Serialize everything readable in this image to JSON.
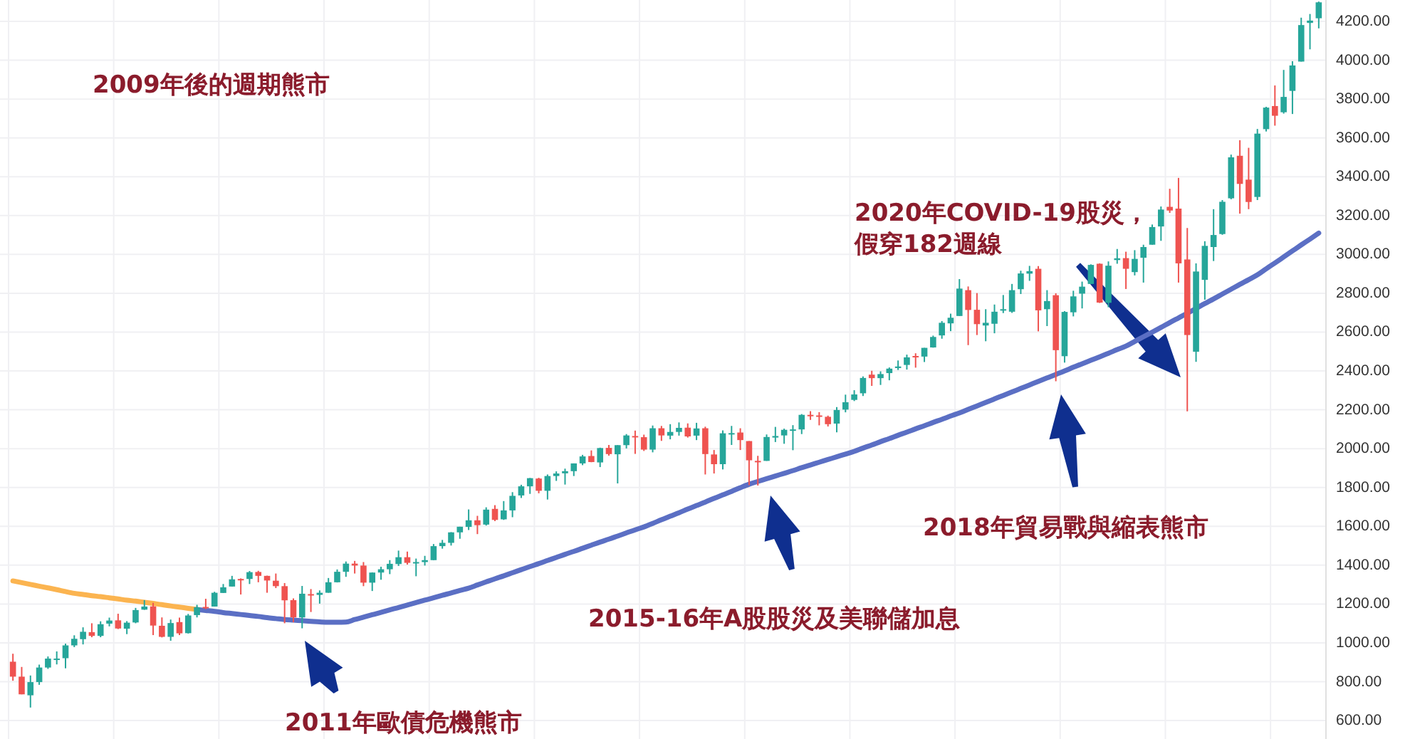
{
  "chart_data": {
    "type": "candlestick",
    "title": "2009年後的週期熊市",
    "annotations": [
      "2011年歐債危機熊市",
      "2015-16年A股股災及美聯儲加息",
      "2018年貿易戰與縮表熊市",
      "2020年COVID-19股災，",
      "假穿182週線"
    ],
    "categories": [
      null,
      null,
      null,
      null,
      null,
      null,
      null,
      null,
      null,
      null,
      null,
      null,
      null,
      null,
      null,
      null,
      null,
      null,
      null,
      null,
      null,
      null,
      null,
      null,
      null,
      null,
      null,
      null,
      null,
      null,
      null,
      null,
      null,
      null,
      null,
      null,
      null,
      null,
      null,
      null,
      null,
      null,
      null,
      null,
      null,
      null,
      null,
      null,
      null,
      null,
      null,
      null,
      null,
      null,
      null,
      null,
      null,
      null,
      null,
      null,
      null,
      null,
      null,
      null,
      null,
      null,
      null,
      null,
      null,
      null,
      null,
      null,
      null,
      null,
      null,
      null,
      null,
      null,
      null,
      null,
      null,
      null,
      null,
      null,
      null,
      null,
      null,
      null,
      null,
      null,
      null,
      null,
      null,
      null,
      null,
      null,
      null,
      null,
      null,
      null,
      null,
      null,
      null,
      null,
      null,
      null,
      null,
      null,
      null,
      null,
      null,
      null,
      null,
      null,
      null,
      null,
      null,
      null,
      null,
      null,
      null,
      null,
      null,
      null,
      null,
      null,
      null,
      null,
      null,
      null,
      null,
      null,
      null,
      null,
      null,
      null,
      null,
      null,
      null,
      null,
      null,
      null,
      null,
      null,
      null,
      null,
      null,
      null,
      null,
      null
    ],
    "ohlc": [
      [
        903,
        944,
        805,
        826
      ],
      [
        826,
        876,
        735,
        735
      ],
      [
        730,
        832,
        667,
        798
      ],
      [
        798,
        888,
        784,
        873
      ],
      [
        873,
        930,
        866,
        919
      ],
      [
        919,
        956,
        889,
        919
      ],
      [
        921,
        996,
        869,
        987
      ],
      [
        987,
        1039,
        978,
        1021
      ],
      [
        1019,
        1080,
        992,
        1057
      ],
      [
        1055,
        1101,
        1029,
        1036
      ],
      [
        1036,
        1111,
        1029,
        1096
      ],
      [
        1099,
        1130,
        1085,
        1115
      ],
      [
        1116,
        1150,
        1071,
        1074
      ],
      [
        1073,
        1112,
        1045,
        1104
      ],
      [
        1105,
        1180,
        1101,
        1169
      ],
      [
        1171,
        1220,
        1170,
        1187
      ],
      [
        1188,
        1206,
        1040,
        1089
      ],
      [
        1088,
        1131,
        1028,
        1031
      ],
      [
        1031,
        1120,
        1011,
        1102
      ],
      [
        1107,
        1130,
        1040,
        1049
      ],
      [
        1050,
        1149,
        1048,
        1141
      ],
      [
        1143,
        1196,
        1131,
        1183
      ],
      [
        1185,
        1227,
        1173,
        1181
      ],
      [
        1187,
        1263,
        1187,
        1258
      ],
      [
        1257,
        1303,
        1257,
        1286
      ],
      [
        1290,
        1345,
        1290,
        1327
      ],
      [
        1329,
        1332,
        1249,
        1326
      ],
      [
        1329,
        1370,
        1303,
        1364
      ],
      [
        1365,
        1371,
        1312,
        1345
      ],
      [
        1345,
        1346,
        1258,
        1321
      ],
      [
        1320,
        1357,
        1282,
        1292
      ],
      [
        1292,
        1308,
        1101,
        1219
      ],
      [
        1220,
        1229,
        1106,
        1131
      ],
      [
        1131,
        1293,
        1075,
        1253
      ],
      [
        1251,
        1277,
        1159,
        1247
      ],
      [
        1247,
        1270,
        1202,
        1258
      ],
      [
        1258,
        1334,
        1258,
        1312
      ],
      [
        1312,
        1378,
        1311,
        1366
      ],
      [
        1366,
        1419,
        1340,
        1408
      ],
      [
        1408,
        1422,
        1357,
        1398
      ],
      [
        1398,
        1416,
        1292,
        1310
      ],
      [
        1310,
        1363,
        1267,
        1362
      ],
      [
        1362,
        1392,
        1325,
        1379
      ],
      [
        1379,
        1426,
        1354,
        1407
      ],
      [
        1406,
        1475,
        1396,
        1441
      ],
      [
        1441,
        1470,
        1403,
        1412
      ],
      [
        1412,
        1434,
        1343,
        1416
      ],
      [
        1416,
        1448,
        1398,
        1426
      ],
      [
        1426,
        1509,
        1426,
        1498
      ],
      [
        1498,
        1530,
        1485,
        1515
      ],
      [
        1515,
        1570,
        1501,
        1569
      ],
      [
        1569,
        1598,
        1536,
        1598
      ],
      [
        1597,
        1687,
        1581,
        1631
      ],
      [
        1631,
        1654,
        1560,
        1606
      ],
      [
        1609,
        1698,
        1604,
        1686
      ],
      [
        1690,
        1709,
        1627,
        1633
      ],
      [
        1636,
        1730,
        1633,
        1682
      ],
      [
        1682,
        1776,
        1647,
        1757
      ],
      [
        1759,
        1814,
        1746,
        1806
      ],
      [
        1806,
        1849,
        1767,
        1848
      ],
      [
        1846,
        1850,
        1770,
        1783
      ],
      [
        1783,
        1867,
        1738,
        1859
      ],
      [
        1859,
        1883,
        1834,
        1872
      ],
      [
        1873,
        1897,
        1815,
        1884
      ],
      [
        1884,
        1924,
        1859,
        1924
      ],
      [
        1924,
        1968,
        1915,
        1960
      ],
      [
        1962,
        1991,
        1930,
        1931
      ],
      [
        1929,
        2005,
        1905,
        2003
      ],
      [
        2004,
        2019,
        1964,
        1972
      ],
      [
        1971,
        2018,
        1821,
        2018
      ],
      [
        2018,
        2075,
        2001,
        2068
      ],
      [
        2065,
        2093,
        1973,
        2059
      ],
      [
        2059,
        2072,
        1988,
        1995
      ],
      [
        1995,
        2119,
        1981,
        2105
      ],
      [
        2105,
        2117,
        2040,
        2068
      ],
      [
        2067,
        2126,
        2048,
        2086
      ],
      [
        2086,
        2135,
        2067,
        2107
      ],
      [
        2108,
        2130,
        2057,
        2063
      ],
      [
        2067,
        2133,
        2044,
        2104
      ],
      [
        2105,
        2113,
        1867,
        1972
      ],
      [
        1970,
        1993,
        1872,
        1920
      ],
      [
        1920,
        2094,
        1893,
        2079
      ],
      [
        2080,
        2117,
        2019,
        2080
      ],
      [
        2083,
        2105,
        1993,
        2044
      ],
      [
        2039,
        2039,
        1812,
        1940
      ],
      [
        1937,
        1963,
        1810,
        1932
      ],
      [
        1937,
        2073,
        1937,
        2060
      ],
      [
        2057,
        2112,
        2034,
        2065
      ],
      [
        2068,
        2103,
        2025,
        2097
      ],
      [
        2094,
        2121,
        1992,
        2099
      ],
      [
        2099,
        2178,
        2075,
        2174
      ],
      [
        2174,
        2193,
        2148,
        2171
      ],
      [
        2171,
        2188,
        2120,
        2168
      ],
      [
        2164,
        2170,
        2114,
        2126
      ],
      [
        2129,
        2214,
        2084,
        2199
      ],
      [
        2201,
        2278,
        2187,
        2239
      ],
      [
        2251,
        2301,
        2245,
        2279
      ],
      [
        2285,
        2372,
        2271,
        2364
      ],
      [
        2381,
        2401,
        2323,
        2363
      ],
      [
        2363,
        2398,
        2328,
        2384
      ],
      [
        2389,
        2418,
        2352,
        2412
      ],
      [
        2415,
        2454,
        2405,
        2423
      ],
      [
        2431,
        2484,
        2407,
        2470
      ],
      [
        2477,
        2491,
        2417,
        2472
      ],
      [
        2474,
        2519,
        2446,
        2519
      ],
      [
        2521,
        2582,
        2520,
        2575
      ],
      [
        2583,
        2657,
        2566,
        2648
      ],
      [
        2645,
        2695,
        2605,
        2674
      ],
      [
        2683,
        2873,
        2683,
        2824
      ],
      [
        2816,
        2835,
        2533,
        2714
      ],
      [
        2715,
        2801,
        2585,
        2641
      ],
      [
        2634,
        2718,
        2553,
        2648
      ],
      [
        2643,
        2742,
        2594,
        2705
      ],
      [
        2718,
        2791,
        2698,
        2718
      ],
      [
        2705,
        2848,
        2699,
        2816
      ],
      [
        2821,
        2916,
        2796,
        2902
      ],
      [
        2901,
        2941,
        2864,
        2914
      ],
      [
        2926,
        2940,
        2604,
        2712
      ],
      [
        2718,
        2816,
        2631,
        2760
      ],
      [
        2790,
        2800,
        2347,
        2507
      ],
      [
        2476,
        2708,
        2443,
        2704
      ],
      [
        2702,
        2813,
        2681,
        2784
      ],
      [
        2798,
        2860,
        2722,
        2834
      ],
      [
        2848,
        2949,
        2848,
        2946
      ],
      [
        2952,
        2954,
        2750,
        2752
      ],
      [
        2751,
        2964,
        2728,
        2942
      ],
      [
        2971,
        3028,
        2952,
        2980
      ],
      [
        2981,
        3014,
        2822,
        2926
      ],
      [
        2909,
        3022,
        2892,
        2977
      ],
      [
        2983,
        3050,
        2855,
        3038
      ],
      [
        3050,
        3154,
        3050,
        3141
      ],
      [
        3144,
        3247,
        3070,
        3231
      ],
      [
        3245,
        3338,
        3214,
        3226
      ],
      [
        3236,
        3394,
        2855,
        2954
      ],
      [
        2974,
        3136,
        2192,
        2585
      ],
      [
        2499,
        2954,
        2447,
        2912
      ],
      [
        2869,
        3068,
        2767,
        3044
      ],
      [
        3038,
        3233,
        2966,
        3100
      ],
      [
        3105,
        3280,
        3101,
        3271
      ],
      [
        3289,
        3514,
        3284,
        3500
      ],
      [
        3508,
        3588,
        3210,
        3363
      ],
      [
        3385,
        3549,
        3233,
        3270
      ],
      [
        3296,
        3646,
        3280,
        3622
      ],
      [
        3645,
        3760,
        3633,
        3756
      ],
      [
        3764,
        3870,
        3663,
        3714
      ],
      [
        3732,
        3950,
        3725,
        3811
      ],
      [
        3842,
        3995,
        3723,
        3973
      ],
      [
        3993,
        4219,
        3993,
        4181
      ],
      [
        4192,
        4238,
        4056,
        4204
      ],
      [
        4216,
        4302,
        4164,
        4298
      ]
    ],
    "colors": [
      "#ef5350",
      "#ef5350",
      "#26a69a",
      "#26a69a",
      "#26a69a",
      "#26a69a",
      "#26a69a",
      "#26a69a",
      "#26a69a",
      "#ef5350",
      "#26a69a",
      "#26a69a",
      "#ef5350",
      "#26a69a",
      "#26a69a",
      "#26a69a",
      "#ef5350",
      "#ef5350",
      "#26a69a",
      "#ef5350",
      "#26a69a",
      "#26a69a",
      "#ef5350",
      "#26a69a",
      "#26a69a",
      "#26a69a",
      "#ef5350",
      "#26a69a",
      "#ef5350",
      "#ef5350",
      "#ef5350",
      "#ef5350",
      "#ef5350",
      "#26a69a",
      "#ef5350",
      "#26a69a",
      "#26a69a",
      "#26a69a",
      "#26a69a",
      "#ef5350",
      "#ef5350",
      "#26a69a",
      "#26a69a",
      "#26a69a",
      "#26a69a",
      "#ef5350",
      "#26a69a",
      "#26a69a",
      "#26a69a",
      "#26a69a",
      "#26a69a",
      "#26a69a",
      "#26a69a",
      "#ef5350",
      "#26a69a",
      "#ef5350",
      "#26a69a",
      "#26a69a",
      "#26a69a",
      "#26a69a",
      "#ef5350",
      "#26a69a",
      "#26a69a",
      "#26a69a",
      "#26a69a",
      "#26a69a",
      "#ef5350",
      "#26a69a",
      "#ef5350",
      "#26a69a",
      "#26a69a",
      "#ef5350",
      "#ef5350",
      "#26a69a",
      "#ef5350",
      "#26a69a",
      "#26a69a",
      "#ef5350",
      "#26a69a",
      "#ef5350",
      "#ef5350",
      "#26a69a",
      "#26a69a",
      "#ef5350",
      "#ef5350",
      "#ef5350",
      "#26a69a",
      "#26a69a",
      "#26a69a",
      "#26a69a",
      "#26a69a",
      "#ef5350",
      "#ef5350",
      "#ef5350",
      "#26a69a",
      "#26a69a",
      "#26a69a",
      "#26a69a",
      "#ef5350",
      "#26a69a",
      "#26a69a",
      "#26a69a",
      "#26a69a",
      "#ef5350",
      "#26a69a",
      "#26a69a",
      "#26a69a",
      "#26a69a",
      "#26a69a",
      "#ef5350",
      "#ef5350",
      "#26a69a",
      "#26a69a",
      "#26a69a",
      "#26a69a",
      "#26a69a",
      "#26a69a",
      "#ef5350",
      "#26a69a",
      "#ef5350",
      "#26a69a",
      "#26a69a",
      "#26a69a",
      "#26a69a",
      "#ef5350",
      "#26a69a",
      "#26a69a",
      "#ef5350",
      "#26a69a",
      "#26a69a",
      "#26a69a",
      "#26a69a",
      "#ef5350",
      "#ef5350",
      "#ef5350",
      "#26a69a",
      "#26a69a",
      "#26a69a",
      "#26a69a",
      "#26a69a",
      "#ef5350",
      "#ef5350",
      "#26a69a",
      "#26a69a",
      "#ef5350",
      "#26a69a",
      "#26a69a",
      "#26a69a",
      "#26a69a",
      "#26a69a"
    ],
    "series": [
      {
        "type": "line",
        "color": "#fbb450",
        "values": [
          1319,
          1310,
          1301,
          1292,
          1283,
          1274,
          1264,
          1255,
          1249,
          1243,
          1238,
          1232,
          1226,
          1220,
          1215,
          1209,
          1203,
          1197,
          1190,
          1184,
          1178,
          1172,
          null,
          null,
          null,
          null,
          null,
          null,
          null,
          null,
          null,
          null,
          null,
          null,
          null,
          null,
          null,
          null,
          null,
          null,
          null,
          null,
          null,
          null,
          null,
          null,
          null,
          null,
          null,
          null,
          null,
          null,
          null,
          null,
          null,
          null,
          null,
          null,
          null,
          null,
          null,
          null,
          null,
          null,
          null,
          null,
          null,
          null,
          null,
          null,
          null,
          null,
          null,
          null,
          null,
          null,
          null,
          null,
          null,
          null,
          null,
          null,
          null,
          null,
          null,
          null,
          null,
          null,
          null,
          null,
          null,
          null,
          null,
          null,
          null,
          null,
          null,
          null,
          null,
          null,
          null,
          null,
          null,
          null,
          null,
          null,
          null,
          null,
          null,
          null,
          null,
          null,
          null,
          null,
          null,
          null,
          null,
          null,
          null,
          null,
          null,
          null,
          null,
          null,
          null,
          null,
          null,
          null,
          null,
          null,
          null,
          null,
          null,
          null,
          null,
          null,
          null,
          null,
          null,
          null,
          null,
          null,
          null,
          null,
          null,
          null,
          null,
          null,
          null,
          null
        ]
      },
      {
        "type": "line",
        "color": "#5b6fc4",
        "values": [
          null,
          null,
          null,
          null,
          null,
          null,
          null,
          null,
          null,
          null,
          null,
          null,
          null,
          null,
          null,
          null,
          null,
          null,
          null,
          null,
          null,
          1172,
          1167,
          1162,
          1156,
          1151,
          1146,
          1141,
          1136,
          1130,
          1125,
          1120,
          1117,
          1114,
          1111,
          1108,
          1106,
          1106,
          1107,
          1120,
          1132,
          1145,
          1157,
          1170,
          1182,
          1195,
          1207,
          1220,
          1232,
          1245,
          1257,
          1270,
          1282,
          1298,
          1314,
          1330,
          1345,
          1361,
          1377,
          1393,
          1408,
          1424,
          1440,
          1456,
          1471,
          1487,
          1503,
          1519,
          1534,
          1550,
          1566,
          1582,
          1597,
          1615,
          1634,
          1652,
          1670,
          1689,
          1707,
          1725,
          1744,
          1762,
          1780,
          1799,
          1817,
          1831,
          1845,
          1859,
          1873,
          1887,
          1902,
          1916,
          1930,
          1944,
          1958,
          1972,
          1986,
          2003,
          2019,
          2036,
          2052,
          2069,
          2085,
          2102,
          2118,
          2135,
          2151,
          2168,
          2184,
          2202,
          2220,
          2238,
          2256,
          2274,
          2292,
          2310,
          2328,
          2346,
          2364,
          2382,
          2400,
          2419,
          2437,
          2455,
          2473,
          2491,
          2510,
          2528,
          2552,
          2576,
          2600,
          2624,
          2649,
          2673,
          2697,
          2722,
          2747,
          2771,
          2796,
          2821,
          2846,
          2870,
          2895,
          2926,
          2956,
          2987,
          3018,
          3049,
          3079,
          3110
        ]
      }
    ],
    "ylim": [
      505,
      4310
    ],
    "yticks": [
      {
        "value": 600,
        "label": "600.00"
      },
      {
        "value": 800,
        "label": "800.00"
      },
      {
        "value": 1000,
        "label": "1000.00"
      },
      {
        "value": 1200,
        "label": "1200.00"
      },
      {
        "value": 1400,
        "label": "1400.00"
      },
      {
        "value": 1600,
        "label": "1600.00"
      },
      {
        "value": 1800,
        "label": "1800.00"
      },
      {
        "value": 2000,
        "label": "2000.00"
      },
      {
        "value": 2200,
        "label": "2200.00"
      },
      {
        "value": 2400,
        "label": "2400.00"
      },
      {
        "value": 2600,
        "label": "2600.00"
      },
      {
        "value": 2800,
        "label": "2800.00"
      },
      {
        "value": 3000,
        "label": "3000.00"
      },
      {
        "value": 3200,
        "label": "3200.00"
      },
      {
        "value": 3400,
        "label": "3400.00"
      },
      {
        "value": 3600,
        "label": "3600.00"
      },
      {
        "value": 3800,
        "label": "3800.00"
      },
      {
        "value": 4000,
        "label": "4000.00"
      },
      {
        "value": 4200,
        "label": "4200.00"
      }
    ],
    "grid": true,
    "tick_labels": "y"
  }
}
